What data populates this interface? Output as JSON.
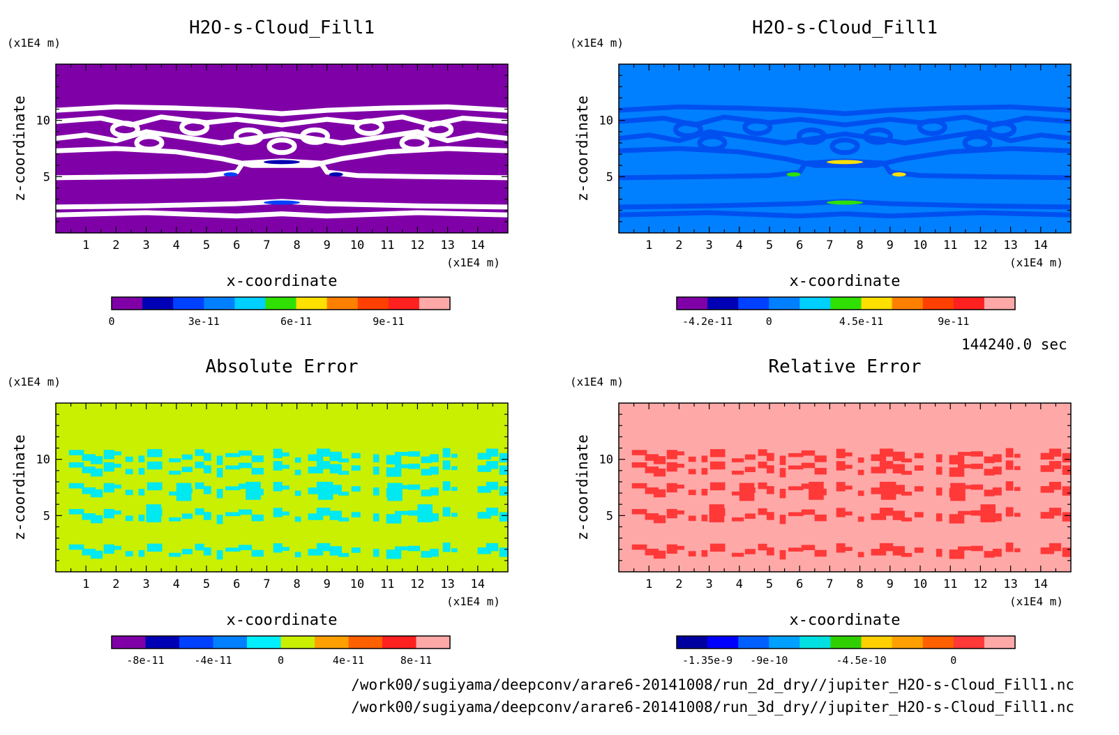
{
  "time_label": "144240.0 sec",
  "footer": [
    "/work00/sugiyama/deepconv/arare6-20141008/run_2d_dry//jupiter_H2O-s-Cloud_Fill1.nc",
    "/work00/sugiyama/deepconv/arare6-20141008/run_3d_dry//jupiter_H2O-s-Cloud_Fill1.nc"
  ],
  "chart_data": [
    {
      "type": "heatmap",
      "title": "H2O-s-Cloud_Fill1",
      "xlabel": "x-coordinate",
      "ylabel": "z-coordinate",
      "x_unit": "(x1E4 m)",
      "y_unit": "(x1E4 m)",
      "xlim": [
        0,
        15
      ],
      "ylim": [
        0,
        15
      ],
      "x_ticks": [
        1,
        2,
        3,
        4,
        5,
        6,
        7,
        8,
        9,
        10,
        11,
        12,
        13,
        14
      ],
      "y_ticks": [
        5,
        10
      ],
      "background_color": "#8000a8",
      "pattern_color": "#ffffff",
      "pattern": "cloud",
      "colorbar": {
        "colors": [
          "#8000a8",
          "#0000b4",
          "#0040ff",
          "#0080ff",
          "#00d0ff",
          "#30e000",
          "#ffe000",
          "#ff8000",
          "#ff4000",
          "#ff2020",
          "#ffa8a8"
        ],
        "tick_labels": [
          "0",
          "3e-11",
          "6e-11",
          "9e-11"
        ],
        "tick_index": [
          0,
          3,
          6,
          9
        ]
      }
    },
    {
      "type": "heatmap",
      "title": "H2O-s-Cloud_Fill1",
      "xlabel": "x-coordinate",
      "ylabel": "z-coordinate",
      "x_unit": "(x1E4 m)",
      "y_unit": "(x1E4 m)",
      "xlim": [
        0,
        15
      ],
      "ylim": [
        0,
        15
      ],
      "x_ticks": [
        1,
        2,
        3,
        4,
        5,
        6,
        7,
        8,
        9,
        10,
        11,
        12,
        13,
        14
      ],
      "y_ticks": [
        5,
        10
      ],
      "background_color": "#0080ff",
      "pattern_color": "#0050f0",
      "pattern": "cloud",
      "colorbar": {
        "colors": [
          "#8000a8",
          "#0000b4",
          "#0040ff",
          "#0080ff",
          "#00d0ff",
          "#30e000",
          "#ffe000",
          "#ff8000",
          "#ff4000",
          "#ff2020",
          "#ffa8a8"
        ],
        "tick_labels": [
          "-4.2e-11",
          "0",
          "4.5e-11",
          "9e-11"
        ],
        "tick_index": [
          1,
          3,
          6,
          9
        ]
      }
    },
    {
      "type": "heatmap",
      "title": "Absolute Error",
      "xlabel": "x-coordinate",
      "ylabel": "z-coordinate",
      "x_unit": "(x1E4 m)",
      "y_unit": "(x1E4 m)",
      "xlim": [
        0,
        15
      ],
      "ylim": [
        0,
        15
      ],
      "x_ticks": [
        1,
        2,
        3,
        4,
        5,
        6,
        7,
        8,
        9,
        10,
        11,
        12,
        13,
        14
      ],
      "y_ticks": [
        5,
        10
      ],
      "background_color": "#c8f000",
      "pattern_color": "#00e8f0",
      "pattern": "error",
      "colorbar": {
        "colors": [
          "#8000a8",
          "#0000b4",
          "#0040ff",
          "#0080ff",
          "#00f0ff",
          "#c8f000",
          "#ffa000",
          "#ff6000",
          "#ff2020",
          "#ffa8a8"
        ],
        "tick_labels": [
          "-8e-11",
          "-4e-11",
          "0",
          "4e-11",
          "8e-11"
        ],
        "tick_index": [
          1,
          3,
          5,
          7,
          9
        ]
      }
    },
    {
      "type": "heatmap",
      "title": "Relative Error",
      "xlabel": "x-coordinate",
      "ylabel": "z-coordinate",
      "x_unit": "(x1E4 m)",
      "y_unit": "(x1E4 m)",
      "xlim": [
        0,
        15
      ],
      "ylim": [
        0,
        15
      ],
      "x_ticks": [
        1,
        2,
        3,
        4,
        5,
        6,
        7,
        8,
        9,
        10,
        11,
        12,
        13,
        14
      ],
      "y_ticks": [
        5,
        10
      ],
      "background_color": "#ffa8a8",
      "pattern_color": "#ff3838",
      "pattern": "error",
      "colorbar": {
        "colors": [
          "#0000a0",
          "#0000ff",
          "#0060ff",
          "#00a0ff",
          "#00e0e0",
          "#30d000",
          "#ffd000",
          "#ffa000",
          "#ff6000",
          "#ff3838",
          "#ffa8a8"
        ],
        "tick_labels": [
          "-1.35e-9",
          "-9e-10",
          "-4.5e-10",
          "0"
        ],
        "tick_index": [
          1,
          3,
          6,
          9
        ]
      }
    }
  ]
}
